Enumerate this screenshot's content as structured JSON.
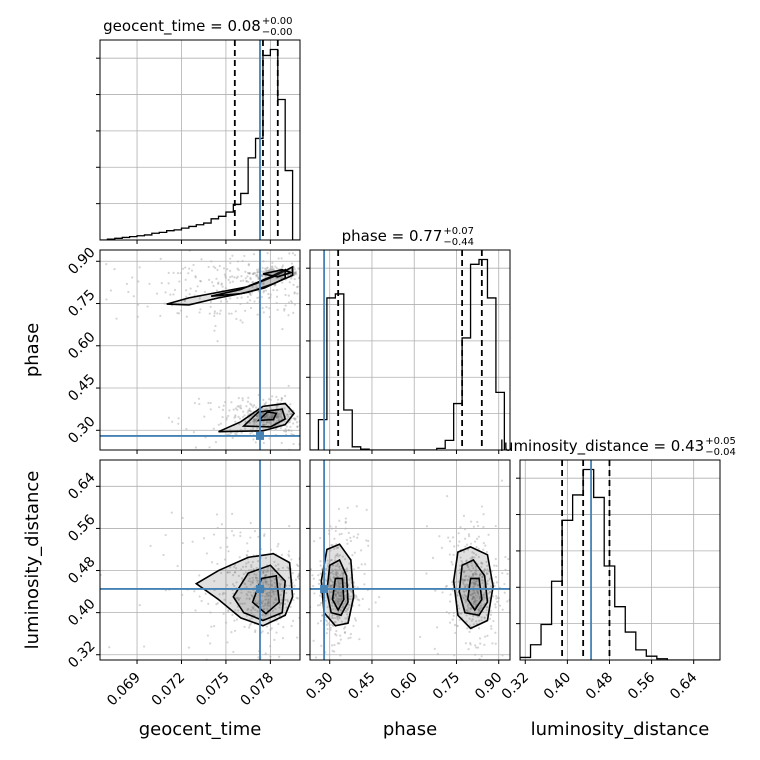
{
  "chart_data": {
    "type": "corner",
    "parameters": [
      "geocent_time",
      "phase",
      "luminosity_distance"
    ],
    "truth": {
      "geocent_time": 0.0773,
      "phase": 0.28,
      "luminosity_distance": 0.445
    },
    "colors": {
      "truth": "#4682b4",
      "hist": "#000000",
      "grid": "#b0b0b0",
      "points": "#888888"
    },
    "diagonal": [
      {
        "param": "geocent_time",
        "title_main": "geocent_time = 0.08",
        "title_sup": "+0.00",
        "title_sub": "−0.00",
        "quantiles": [
          0.0756,
          0.0775,
          0.0785
        ],
        "xlim": [
          0.0665,
          0.08
        ],
        "bins_edges": [
          0.0665,
          0.067,
          0.0675,
          0.068,
          0.0685,
          0.069,
          0.0695,
          0.07,
          0.0705,
          0.071,
          0.0715,
          0.072,
          0.0725,
          0.073,
          0.0735,
          0.074,
          0.0745,
          0.075,
          0.0755,
          0.076,
          0.0765,
          0.077,
          0.0775,
          0.078,
          0.0785,
          0.079,
          0.0795,
          0.08
        ],
        "counts": [
          0,
          1,
          2,
          3,
          4,
          5,
          6,
          8,
          9,
          11,
          12,
          14,
          16,
          18,
          20,
          25,
          28,
          33,
          42,
          55,
          97,
          120,
          218,
          225,
          166,
          82,
          0
        ]
      },
      {
        "param": "phase",
        "title_main": "phase = 0.77",
        "title_sup": "+0.07",
        "title_sub": "−0.44",
        "quantiles": [
          0.33,
          0.77,
          0.84
        ],
        "xlim": [
          0.23,
          0.94
        ],
        "bins_edges": [
          0.23,
          0.26,
          0.29,
          0.32,
          0.35,
          0.38,
          0.41,
          0.44,
          0.47,
          0.5,
          0.53,
          0.56,
          0.59,
          0.62,
          0.65,
          0.68,
          0.71,
          0.74,
          0.77,
          0.8,
          0.83,
          0.86,
          0.89,
          0.92,
          0.94
        ],
        "counts": [
          0,
          38,
          190,
          195,
          50,
          4,
          1,
          0,
          0,
          0,
          0,
          0,
          0,
          0,
          0,
          2,
          12,
          58,
          140,
          232,
          238,
          190,
          72,
          0
        ]
      },
      {
        "param": "luminosity_distance",
        "title_main": "luminosity_distance = 0.43",
        "title_sup": "+0.05",
        "title_sub": "−0.04",
        "quantiles": [
          0.39,
          0.43,
          0.48
        ],
        "xlim": [
          0.31,
          0.69
        ],
        "bins_edges": [
          0.31,
          0.33,
          0.35,
          0.37,
          0.39,
          0.41,
          0.43,
          0.45,
          0.47,
          0.49,
          0.51,
          0.53,
          0.55,
          0.57,
          0.59,
          0.61,
          0.63,
          0.65,
          0.67,
          0.69
        ],
        "counts": [
          2,
          12,
          28,
          62,
          110,
          130,
          150,
          128,
          74,
          42,
          22,
          8,
          3,
          1,
          0,
          0,
          0,
          0,
          0
        ]
      }
    ],
    "axes": {
      "geocent_time": {
        "range": [
          0.0665,
          0.08
        ],
        "ticks": [
          0.069,
          0.072,
          0.075,
          0.078
        ],
        "tick_labels": [
          "0.069",
          "0.072",
          "0.075",
          "0.078"
        ],
        "label": "geocent_time"
      },
      "phase": {
        "range": [
          0.23,
          0.94
        ],
        "ticks": [
          0.3,
          0.45,
          0.6,
          0.75,
          0.9
        ],
        "tick_labels": [
          "0.30",
          "0.45",
          "0.60",
          "0.75",
          "0.90"
        ],
        "label": "phase"
      },
      "luminosity_distance": {
        "range": [
          0.31,
          0.69
        ],
        "ticks": [
          0.32,
          0.4,
          0.48,
          0.56,
          0.64
        ],
        "tick_labels": [
          "0.32",
          "0.40",
          "0.48",
          "0.56",
          "0.64"
        ],
        "label": "luminosity_distance"
      }
    },
    "pairs": [
      {
        "x": "geocent_time",
        "y": "phase",
        "contours": [
          [
            [
              0.071,
              0.748
            ],
            [
              0.0725,
              0.77
            ],
            [
              0.0745,
              0.79
            ],
            [
              0.0765,
              0.81
            ],
            [
              0.0782,
              0.845
            ],
            [
              0.0795,
              0.88
            ],
            [
              0.0795,
              0.85
            ],
            [
              0.0782,
              0.82
            ],
            [
              0.0765,
              0.79
            ],
            [
              0.0745,
              0.77
            ],
            [
              0.0725,
              0.745
            ]
          ],
          [
            [
              0.074,
              0.776
            ],
            [
              0.076,
              0.8
            ],
            [
              0.0778,
              0.84
            ],
            [
              0.079,
              0.87
            ],
            [
              0.079,
              0.84
            ],
            [
              0.0776,
              0.805
            ],
            [
              0.076,
              0.785
            ]
          ],
          [
            [
              0.0775,
              0.855
            ],
            [
              0.0788,
              0.87
            ],
            [
              0.0794,
              0.86
            ],
            [
              0.0785,
              0.845
            ]
          ],
          [
            [
              0.0745,
              0.295
            ],
            [
              0.076,
              0.33
            ],
            [
              0.0775,
              0.385
            ],
            [
              0.079,
              0.395
            ],
            [
              0.0796,
              0.36
            ],
            [
              0.079,
              0.32
            ],
            [
              0.0775,
              0.298
            ]
          ],
          [
            [
              0.0762,
              0.315
            ],
            [
              0.0772,
              0.365
            ],
            [
              0.0788,
              0.375
            ],
            [
              0.079,
              0.34
            ],
            [
              0.078,
              0.312
            ]
          ],
          [
            [
              0.0772,
              0.335
            ],
            [
              0.0778,
              0.365
            ],
            [
              0.0784,
              0.36
            ],
            [
              0.0782,
              0.338
            ]
          ]
        ]
      },
      {
        "x": "geocent_time",
        "y": "luminosity_distance",
        "contours": [
          [
            [
              0.073,
              0.455
            ],
            [
              0.0745,
              0.48
            ],
            [
              0.0765,
              0.505
            ],
            [
              0.0782,
              0.512
            ],
            [
              0.0793,
              0.495
            ],
            [
              0.0795,
              0.43
            ],
            [
              0.079,
              0.395
            ],
            [
              0.0775,
              0.375
            ],
            [
              0.076,
              0.39
            ],
            [
              0.0745,
              0.425
            ]
          ],
          [
            [
              0.0755,
              0.43
            ],
            [
              0.0765,
              0.475
            ],
            [
              0.078,
              0.49
            ],
            [
              0.079,
              0.46
            ],
            [
              0.0788,
              0.4
            ],
            [
              0.0775,
              0.385
            ],
            [
              0.0762,
              0.4
            ]
          ],
          [
            [
              0.0768,
              0.42
            ],
            [
              0.0774,
              0.465
            ],
            [
              0.0784,
              0.47
            ],
            [
              0.0786,
              0.42
            ],
            [
              0.0777,
              0.398
            ]
          ]
        ]
      },
      {
        "x": "phase",
        "y": "luminosity_distance",
        "contours": [
          [
            [
              0.27,
              0.46
            ],
            [
              0.29,
              0.52
            ],
            [
              0.335,
              0.53
            ],
            [
              0.375,
              0.5
            ],
            [
              0.385,
              0.43
            ],
            [
              0.365,
              0.38
            ],
            [
              0.32,
              0.375
            ],
            [
              0.28,
              0.4
            ]
          ],
          [
            [
              0.29,
              0.44
            ],
            [
              0.3,
              0.49
            ],
            [
              0.335,
              0.5
            ],
            [
              0.36,
              0.47
            ],
            [
              0.365,
              0.42
            ],
            [
              0.34,
              0.395
            ],
            [
              0.305,
              0.4
            ]
          ],
          [
            [
              0.31,
              0.425
            ],
            [
              0.32,
              0.465
            ],
            [
              0.345,
              0.465
            ],
            [
              0.35,
              0.425
            ],
            [
              0.33,
              0.405
            ]
          ],
          [
            [
              0.74,
              0.46
            ],
            [
              0.755,
              0.515
            ],
            [
              0.8,
              0.525
            ],
            [
              0.86,
              0.51
            ],
            [
              0.88,
              0.45
            ],
            [
              0.86,
              0.385
            ],
            [
              0.8,
              0.37
            ],
            [
              0.755,
              0.395
            ]
          ],
          [
            [
              0.76,
              0.44
            ],
            [
              0.77,
              0.49
            ],
            [
              0.81,
              0.5
            ],
            [
              0.85,
              0.47
            ],
            [
              0.86,
              0.42
            ],
            [
              0.83,
              0.395
            ],
            [
              0.78,
              0.4
            ]
          ],
          [
            [
              0.79,
              0.425
            ],
            [
              0.8,
              0.465
            ],
            [
              0.83,
              0.465
            ],
            [
              0.84,
              0.425
            ],
            [
              0.815,
              0.405
            ]
          ]
        ]
      }
    ]
  }
}
